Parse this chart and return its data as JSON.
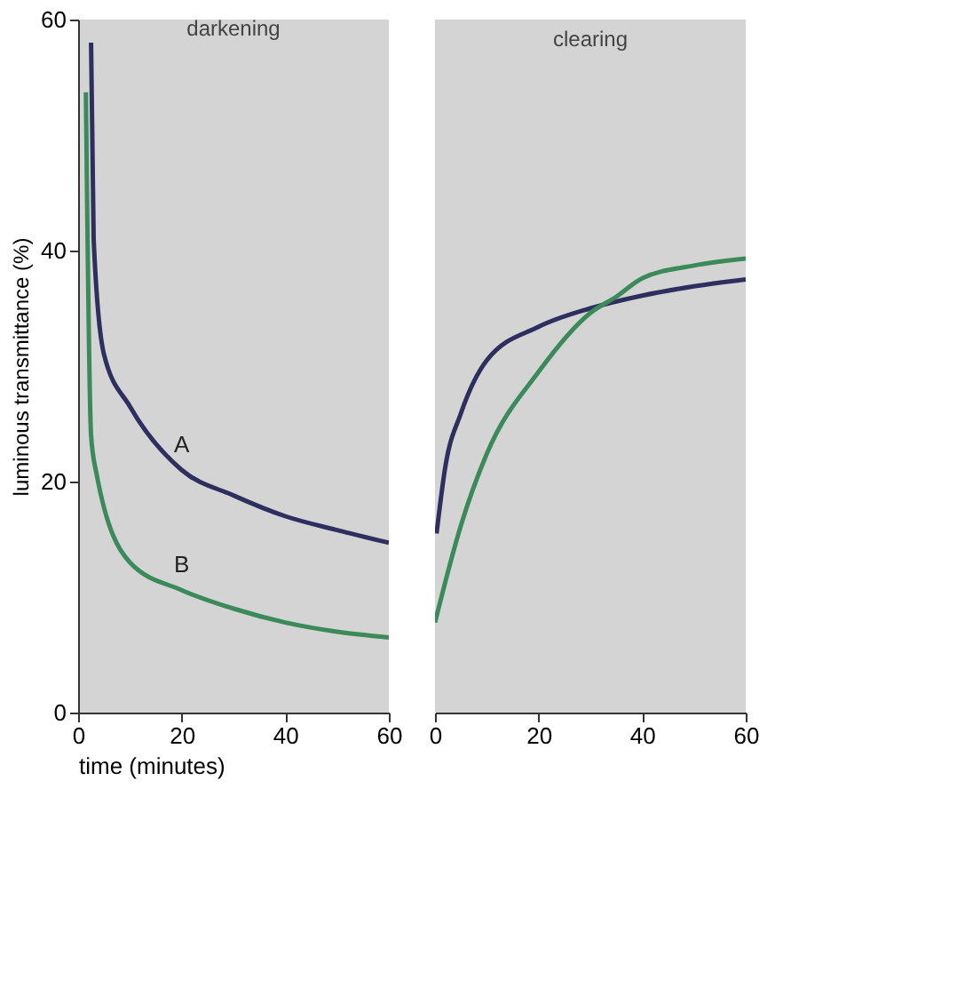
{
  "chart_data": [
    {
      "type": "line",
      "title": "darkening",
      "xlabel": "time (minutes)",
      "ylabel": "luminous transmittance (%)",
      "xlim": [
        0,
        60
      ],
      "xticks": [
        0,
        20,
        40,
        60
      ],
      "ylim": [
        0,
        60
      ],
      "yticks": [
        0,
        20,
        40,
        60
      ],
      "grid": false,
      "marker": "none",
      "line_style": "solid",
      "series": [
        {
          "name": "A",
          "color": "#2e2f5e",
          "x": [
            2.5,
            3,
            5,
            10,
            20,
            30,
            40,
            50,
            60
          ],
          "values": [
            58,
            41,
            31,
            26.5,
            21,
            18.8,
            17,
            15.8,
            14.7
          ]
        },
        {
          "name": "B",
          "color": "#3a8a5a",
          "x": [
            1.5,
            2.5,
            3.5,
            10,
            20,
            30,
            40,
            50,
            60
          ],
          "values": [
            53.7,
            24,
            20.8,
            13,
            10.6,
            9,
            7.8,
            7,
            6.5
          ]
        }
      ]
    },
    {
      "type": "line",
      "title": "clearing",
      "xlim": [
        0,
        60
      ],
      "xticks": [
        0,
        20,
        40,
        60
      ],
      "ylim": [
        0,
        60
      ],
      "tick_labels": "x",
      "grid": false,
      "marker": "none",
      "line_style": "solid",
      "series": [
        {
          "color": "#2e2f5e",
          "x": [
            0.3,
            2,
            5,
            10,
            20,
            30,
            40,
            50,
            60
          ],
          "values": [
            15.5,
            21.3,
            25.9,
            30.5,
            33.4,
            35,
            36.1,
            36.9,
            37.5
          ]
        },
        {
          "color": "#3a8a5a",
          "x": [
            0,
            5,
            10,
            20,
            30,
            35,
            40,
            50,
            60
          ],
          "values": [
            7.8,
            16.2,
            22.4,
            29.5,
            34.6,
            36,
            37.6,
            38.7,
            39.3
          ]
        }
      ]
    }
  ]
}
